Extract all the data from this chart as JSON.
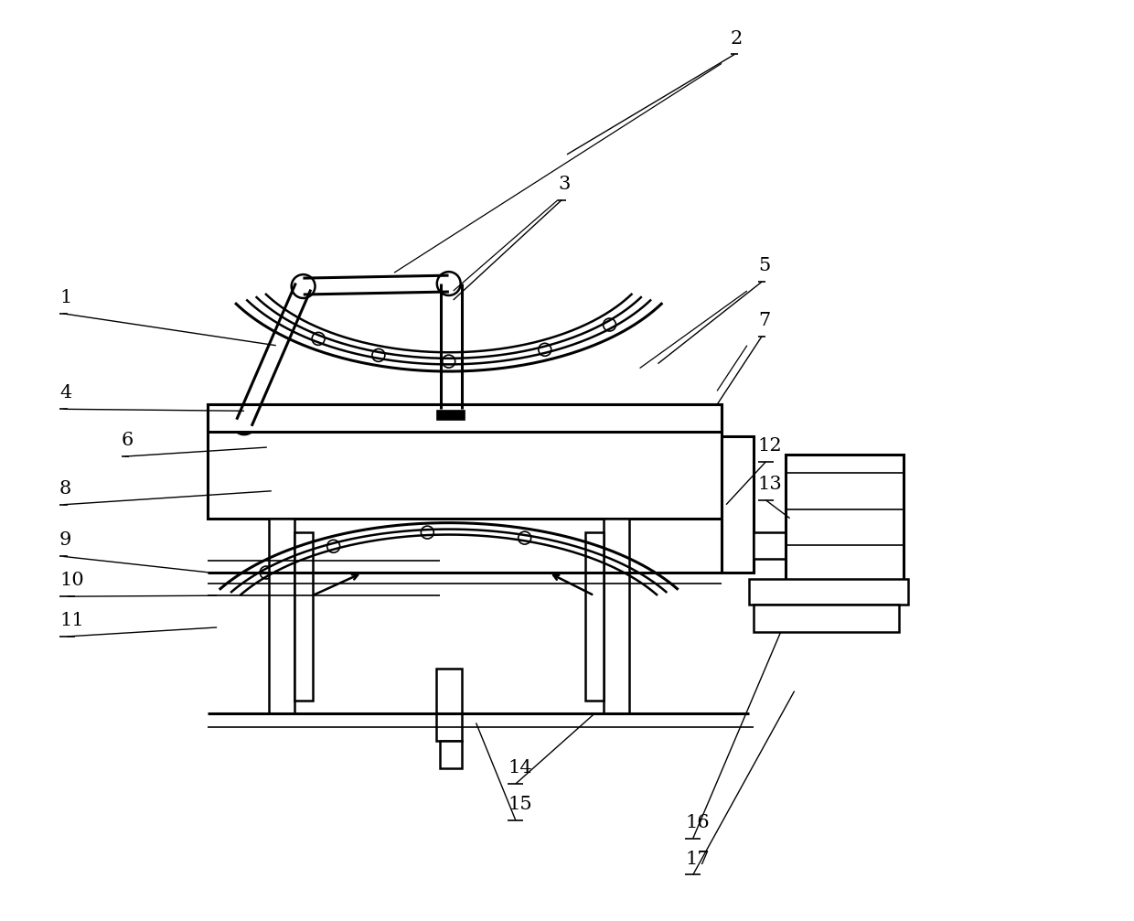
{
  "bg_color": "#ffffff",
  "line_color": "#000000",
  "fig_width": 12.4,
  "fig_height": 10.07,
  "lw_thin": 1.2,
  "lw_med": 1.8,
  "lw_thick": 2.2
}
